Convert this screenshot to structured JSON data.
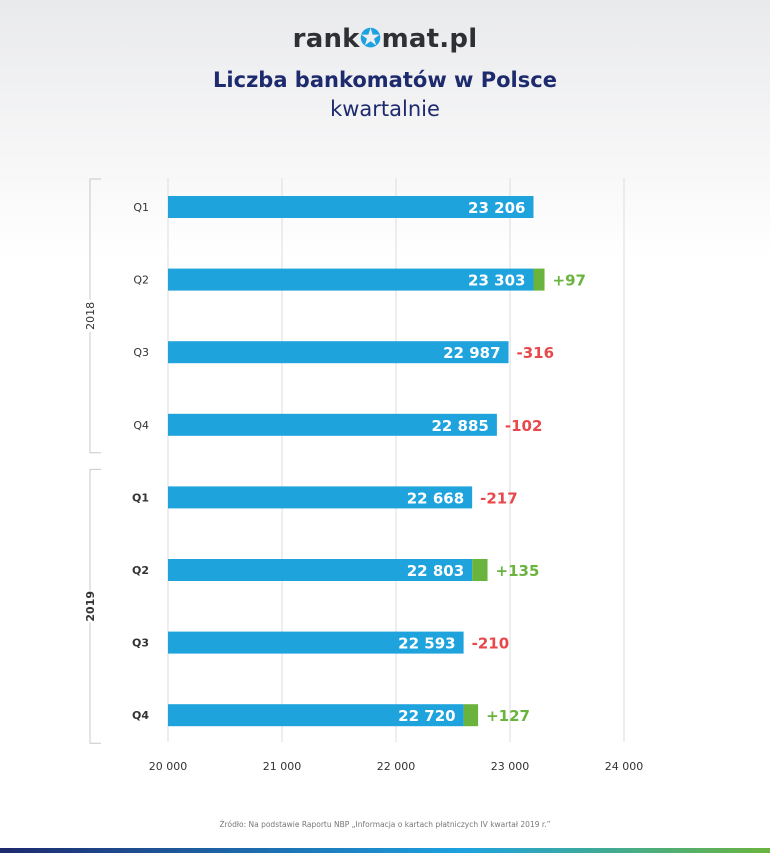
{
  "header": {
    "logo_prefix": "rank",
    "logo_star": "✪",
    "logo_suffix": "mat.pl"
  },
  "chart_data": {
    "type": "bar",
    "orientation": "horizontal",
    "title": "Liczba bankomatów w Polsce",
    "subtitle": "kwartalnie",
    "xlim": [
      20000,
      24000
    ],
    "xticks": [
      20000,
      21000,
      22000,
      23000,
      24000
    ],
    "xtick_labels": [
      "20 000",
      "21 000",
      "22 000",
      "23 000",
      "24 000"
    ],
    "grid": "vertical",
    "groups": [
      {
        "name": "2018",
        "rows": [
          {
            "category": "Q1",
            "value": 23206,
            "value_label": "23 206",
            "change": null,
            "change_label": ""
          },
          {
            "category": "Q2",
            "value": 23303,
            "value_label": "23 303",
            "change": 97,
            "change_label": "+97"
          },
          {
            "category": "Q3",
            "value": 22987,
            "value_label": "22 987",
            "change": -316,
            "change_label": "-316"
          },
          {
            "category": "Q4",
            "value": 22885,
            "value_label": "22 885",
            "change": -102,
            "change_label": "-102"
          }
        ]
      },
      {
        "name": "2019",
        "rows": [
          {
            "category": "Q1",
            "value": 22668,
            "value_label": "22 668",
            "change": -217,
            "change_label": "-217"
          },
          {
            "category": "Q2",
            "value": 22803,
            "value_label": "22 803",
            "change": 135,
            "change_label": "+135"
          },
          {
            "category": "Q3",
            "value": 22593,
            "value_label": "22 593",
            "change": -210,
            "change_label": "-210"
          },
          {
            "category": "Q4",
            "value": 22720,
            "value_label": "22 720",
            "change": 127,
            "change_label": "+127"
          }
        ]
      }
    ],
    "colors": {
      "bar": "#1fa3dd",
      "increase": "#6ab43e",
      "increase_text": "#6ab43e",
      "decrease_text": "#e8484b",
      "grid": "#dddddd",
      "bracket": "#c8c8c8",
      "label": "#333333"
    }
  },
  "source": "Źródło: Na podstawie Raportu NBP „Informacja o kartach płatniczych IV kwartał 2019 r.”"
}
